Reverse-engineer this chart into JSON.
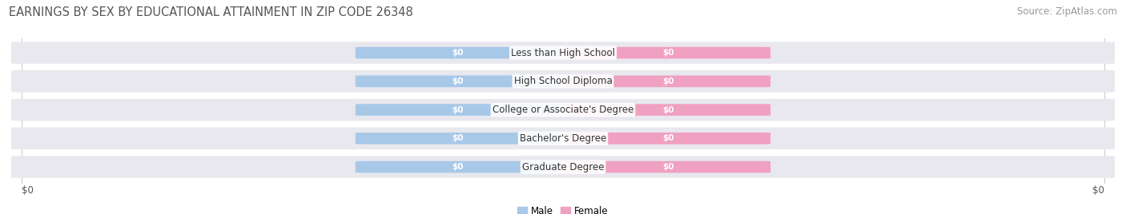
{
  "title": "EARNINGS BY SEX BY EDUCATIONAL ATTAINMENT IN ZIP CODE 26348",
  "source": "Source: ZipAtlas.com",
  "categories": [
    "Less than High School",
    "High School Diploma",
    "College or Associate's Degree",
    "Bachelor's Degree",
    "Graduate Degree"
  ],
  "male_values": [
    0,
    0,
    0,
    0,
    0
  ],
  "female_values": [
    0,
    0,
    0,
    0,
    0
  ],
  "male_color": "#a8c8e8",
  "female_color": "#f0a0c0",
  "male_label": "Male",
  "female_label": "Female",
  "background_color": "#ffffff",
  "row_bg_color": "#e8e8ee",
  "xlabel_left": "$0",
  "xlabel_right": "$0",
  "title_fontsize": 10.5,
  "source_fontsize": 8.5,
  "label_fontsize": 8.5,
  "bar_value_fontsize": 7.5,
  "figsize": [
    14.06,
    2.68
  ],
  "dpi": 100
}
